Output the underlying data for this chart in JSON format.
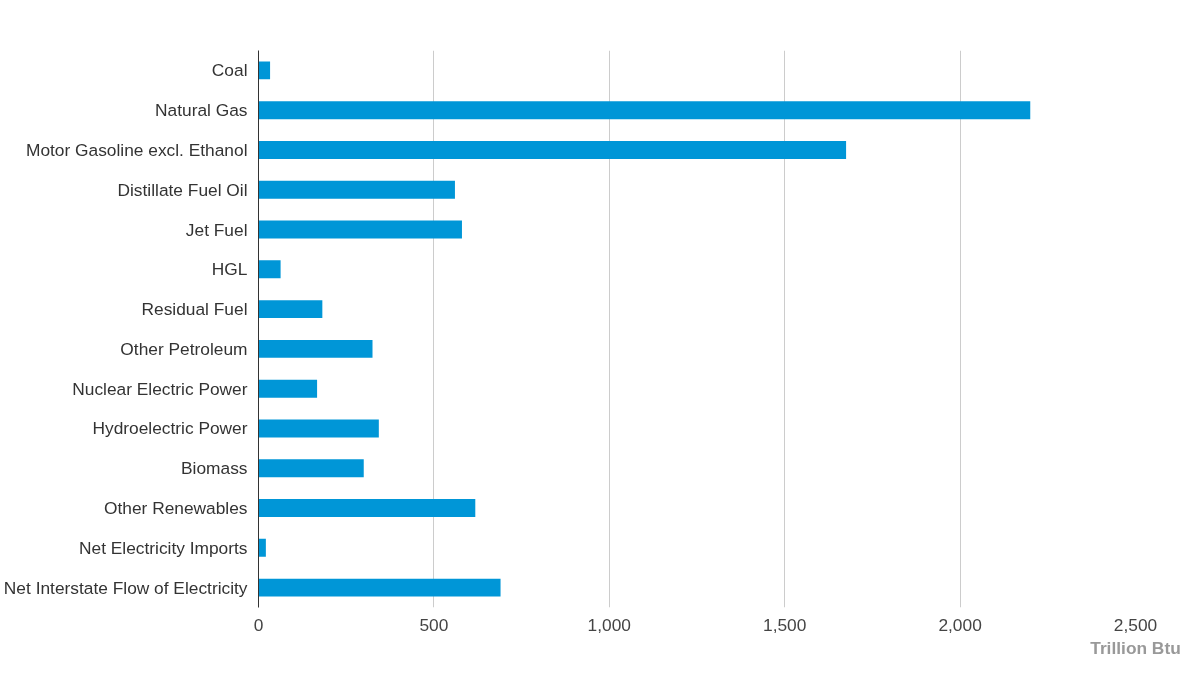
{
  "chart_data": {
    "type": "bar",
    "orientation": "horizontal",
    "xlabel": "Trillion Btu",
    "categories": [
      "Coal",
      "Natural Gas",
      "Motor Gasoline excl. Ethanol",
      "Distillate Fuel Oil",
      "Jet Fuel",
      "HGL",
      "Residual Fuel",
      "Other Petroleum",
      "Nuclear Electric Power",
      "Hydroelectric Power",
      "Biomass",
      "Other Renewables",
      "Net Electricity Imports",
      "Net Interstate Flow of Electricity"
    ],
    "values": [
      33,
      2200,
      1675,
      560,
      580,
      63,
      182,
      325,
      167,
      343,
      300,
      618,
      21,
      690
    ],
    "color": "#0096d7",
    "xlim": [
      0,
      2500
    ],
    "xticks": [
      0,
      {
        "value": 500,
        "label": "500"
      },
      {
        "value": 1000,
        "label": "1,000"
      },
      {
        "value": 1500,
        "label": "1,500"
      },
      {
        "value": 2000,
        "label": "2,000"
      },
      {
        "value": 2500,
        "label": "2,500"
      }
    ],
    "grid": "x"
  }
}
